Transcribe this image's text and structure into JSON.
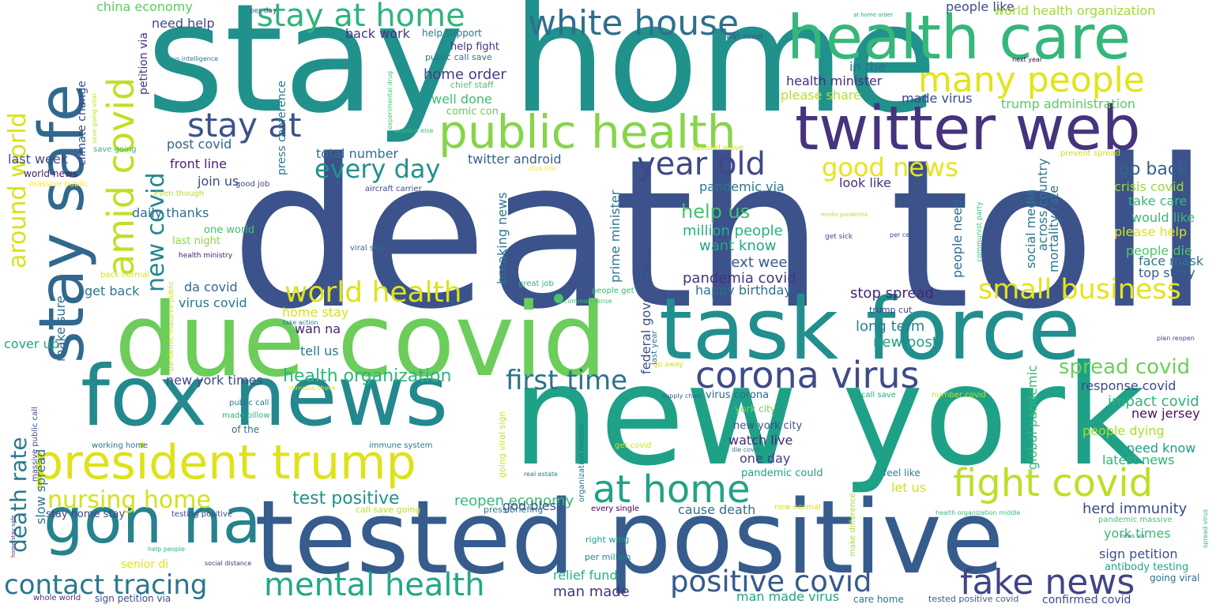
{
  "colors": {
    "background": "#ffffff",
    "palette": [
      "#440154",
      "#46327e",
      "#365c8d",
      "#277f8e",
      "#1fa187",
      "#4ac16d",
      "#a0da39",
      "#fde725"
    ]
  },
  "words": [
    {
      "text": "death toll",
      "color": "#3b528b"
    },
    {
      "text": "stay home",
      "color": "#21918c"
    },
    {
      "text": "new york",
      "color": "#1fa187"
    },
    {
      "text": "tested positive",
      "color": "#365c8d"
    },
    {
      "text": "due covid",
      "color": "#6ccd5a"
    },
    {
      "text": "task force",
      "color": "#218f8d"
    },
    {
      "text": "fox news",
      "color": "#23898e"
    },
    {
      "text": "health care",
      "color": "#35b779"
    },
    {
      "text": "twitter web",
      "color": "#46337e"
    },
    {
      "text": "gon na",
      "color": "#26828e"
    },
    {
      "text": "stay safe",
      "color": "#31688e"
    },
    {
      "text": "public health",
      "color": "#86d549"
    },
    {
      "text": "president trump",
      "color": "#dde318"
    },
    {
      "text": "white house",
      "color": "#2d708e"
    },
    {
      "text": "fight covid",
      "color": "#bddf26"
    },
    {
      "text": "corona virus",
      "color": "#3e4a89"
    },
    {
      "text": "stay at home",
      "color": "#2fb47c"
    },
    {
      "text": "at home",
      "color": "#20a386"
    },
    {
      "text": "fake news",
      "color": "#404588"
    },
    {
      "text": "positive covid",
      "color": "#375a8c"
    },
    {
      "text": "mental health",
      "color": "#22a884"
    },
    {
      "text": "contact tracing",
      "color": "#2a768e"
    },
    {
      "text": "many people",
      "color": "#e2e418"
    },
    {
      "text": "stay at",
      "color": "#3b528b"
    },
    {
      "text": "amid covid",
      "color": "#c2df23"
    },
    {
      "text": "year old",
      "color": "#3f4788"
    },
    {
      "text": "every day",
      "color": "#20928c"
    },
    {
      "text": "first time",
      "color": "#2c728e"
    },
    {
      "text": "world health",
      "color": "#dde318"
    },
    {
      "text": "small business",
      "color": "#e5e419"
    },
    {
      "text": "nursing home",
      "color": "#d2e21b"
    },
    {
      "text": "good news",
      "color": "#e7e419"
    },
    {
      "text": "spread covid",
      "color": "#6ece58"
    },
    {
      "text": "new covid",
      "color": "#24868e"
    },
    {
      "text": "around world",
      "color": "#d8e219"
    },
    {
      "text": "death rate",
      "color": "#2a788e"
    },
    {
      "text": "test positive",
      "color": "#21918c"
    },
    {
      "text": "health organization",
      "color": "#2fb47c"
    },
    {
      "text": "help us",
      "color": "#44bf70"
    },
    {
      "text": "go back",
      "color": "#33638d"
    },
    {
      "text": "million people",
      "color": "#29af7f"
    },
    {
      "text": "reopen economy",
      "color": "#37b878"
    },
    {
      "text": "herd immunity",
      "color": "#3e4989"
    },
    {
      "text": "stop spread",
      "color": "#482576"
    },
    {
      "text": "want know",
      "color": "#22a785"
    },
    {
      "text": "well done",
      "color": "#3dbc74"
    },
    {
      "text": "home order",
      "color": "#424086"
    },
    {
      "text": "next week",
      "color": "#38598c"
    },
    {
      "text": "pandemia covid",
      "color": "#46337f"
    },
    {
      "text": "long term",
      "color": "#26828e"
    },
    {
      "text": "new post",
      "color": "#1f9f88"
    },
    {
      "text": "response covid",
      "color": "#3e4989"
    },
    {
      "text": "impact covid",
      "color": "#2db27d"
    },
    {
      "text": "new jersey",
      "color": "#471063"
    },
    {
      "text": "people dying",
      "color": "#a8db34"
    },
    {
      "text": "need know",
      "color": "#1e9c89"
    },
    {
      "text": "latest news",
      "color": "#2eb37c"
    },
    {
      "text": "york times",
      "color": "#3aba76"
    },
    {
      "text": "sign petition",
      "color": "#3c4f8a"
    },
    {
      "text": "antibody testing",
      "color": "#20a386"
    },
    {
      "text": "going viral",
      "color": "#2e6e8e"
    },
    {
      "text": "man made",
      "color": "#46337e"
    },
    {
      "text": "man made virus",
      "color": "#20a486"
    },
    {
      "text": "relief fund",
      "color": "#2ab07f"
    },
    {
      "text": "per million",
      "color": "#25848e"
    },
    {
      "text": "right wing",
      "color": "#1fa088"
    },
    {
      "text": "watch live",
      "color": "#482878"
    },
    {
      "text": "one day",
      "color": "#433e85"
    },
    {
      "text": "pandemic could",
      "color": "#1f9e89"
    },
    {
      "text": "york city",
      "color": "#75d054"
    },
    {
      "text": "new york city",
      "color": "#3b528b"
    },
    {
      "text": "virus corona",
      "color": "#31688e"
    },
    {
      "text": "let us",
      "color": "#d0e11c"
    },
    {
      "text": "feel like",
      "color": "#25838e"
    },
    {
      "text": "cause death",
      "color": "#2e6e8e"
    },
    {
      "text": "god bless",
      "color": "#3b528b"
    },
    {
      "text": "happy birthday",
      "color": "#2c718e"
    },
    {
      "text": "look like",
      "color": "#46307e"
    },
    {
      "text": "pandemic via",
      "color": "#2a768e"
    },
    {
      "text": "total number",
      "color": "#2c738e"
    },
    {
      "text": "twitter android",
      "color": "#355f8d"
    },
    {
      "text": "post covid",
      "color": "#33638d"
    },
    {
      "text": "front line",
      "color": "#482173"
    },
    {
      "text": "join us",
      "color": "#3e4a89"
    },
    {
      "text": "daily thanks",
      "color": "#2e6f8e"
    },
    {
      "text": "one world",
      "color": "#45bf70"
    },
    {
      "text": "last night",
      "color": "#8ed645"
    },
    {
      "text": "da covid",
      "color": "#31688e"
    },
    {
      "text": "get back",
      "color": "#2a778e"
    },
    {
      "text": "virus covid",
      "color": "#2a778e"
    },
    {
      "text": "home stay",
      "color": "#d5e21a"
    },
    {
      "text": "wan na",
      "color": "#482475"
    },
    {
      "text": "tell us",
      "color": "#2a768e"
    },
    {
      "text": "cover up",
      "color": "#22a785"
    },
    {
      "text": "new york times",
      "color": "#3f4889"
    },
    {
      "text": "of the",
      "color": "#2e6e8e"
    },
    {
      "text": "china economy",
      "color": "#5ec962"
    },
    {
      "text": "need help",
      "color": "#3f4788"
    },
    {
      "text": "back work",
      "color": "#453581"
    },
    {
      "text": "help fight",
      "color": "#46337e"
    },
    {
      "text": "help support",
      "color": "#2a778e"
    },
    {
      "text": "public call save",
      "color": "#2a768e"
    },
    {
      "text": "comic con",
      "color": "#62cb5f"
    },
    {
      "text": "chief staff",
      "color": "#50c46a"
    },
    {
      "text": "people like",
      "color": "#3e4c8a"
    },
    {
      "text": "world health organization",
      "color": "#a2da37"
    },
    {
      "text": "in the",
      "color": "#2a768e"
    },
    {
      "text": "health minister",
      "color": "#472c7a"
    },
    {
      "text": "please share",
      "color": "#b8de29"
    },
    {
      "text": "made virus",
      "color": "#3f4788"
    },
    {
      "text": "trump administration",
      "color": "#5cc863"
    },
    {
      "text": "crisis covid",
      "color": "#9dd93b"
    },
    {
      "text": "take care",
      "color": "#3aba76"
    },
    {
      "text": "would like",
      "color": "#3aba76"
    },
    {
      "text": "please help",
      "color": "#dae319"
    },
    {
      "text": "people die",
      "color": "#54c568"
    },
    {
      "text": "face mask",
      "color": "#2a778e"
    },
    {
      "text": "top story",
      "color": "#355f8d"
    },
    {
      "text": "trump cut",
      "color": "#404588"
    },
    {
      "text": "last week",
      "color": "#3e4a89"
    },
    {
      "text": "world news",
      "color": "#481a6c"
    },
    {
      "text": "massive public",
      "color": "#fde725"
    },
    {
      "text": "even though",
      "color": "#b5de2b"
    },
    {
      "text": "good job",
      "color": "#3e4989"
    },
    {
      "text": "aircraft carrier",
      "color": "#3e4989"
    },
    {
      "text": "viral sign",
      "color": "#31688e"
    },
    {
      "text": "health ministry",
      "color": "#481769"
    },
    {
      "text": "back normal",
      "color": "#d2e21b"
    },
    {
      "text": "great job",
      "color": "#2db27d"
    },
    {
      "text": "people get",
      "color": "#37b878"
    },
    {
      "text": "common sense",
      "color": "#3dbc74"
    },
    {
      "text": "take action",
      "color": "#2a788e"
    },
    {
      "text": "go away",
      "color": "#cde11d"
    },
    {
      "text": "stimulus check",
      "color": "#dde318"
    },
    {
      "text": "supply chain",
      "color": "#33638d"
    },
    {
      "text": "call save",
      "color": "#25ab82"
    },
    {
      "text": "number covid",
      "color": "#c0df25"
    },
    {
      "text": "public call",
      "color": "#2a768e"
    },
    {
      "text": "made pillow",
      "color": "#2db27d"
    },
    {
      "text": "working home",
      "color": "#2c728e"
    },
    {
      "text": "immune system",
      "color": "#2a768e"
    },
    {
      "text": "stay home stay",
      "color": "#404588"
    },
    {
      "text": "testing positive",
      "color": "#3e4a89"
    },
    {
      "text": "senior di",
      "color": "#e3e418"
    },
    {
      "text": "social distance",
      "color": "#46307e"
    },
    {
      "text": "help people",
      "color": "#2db27d"
    },
    {
      "text": "call save going",
      "color": "#b8de29"
    },
    {
      "text": "press briefing",
      "color": "#2a768e"
    },
    {
      "text": "every single",
      "color": "#440154"
    },
    {
      "text": "real estate",
      "color": "#2a768e"
    },
    {
      "text": "get covid",
      "color": "#cde11d"
    },
    {
      "text": "die covid",
      "color": "#2a768e"
    },
    {
      "text": "new normal",
      "color": "#d8e219"
    },
    {
      "text": "health organization middle",
      "color": "#35b779"
    },
    {
      "text": "pandemic massive",
      "color": "#4ac16d"
    },
    {
      "text": "tested positive covid",
      "color": "#355f8d"
    },
    {
      "text": "care home",
      "color": "#2a768e"
    },
    {
      "text": "confirmed covid",
      "color": "#3e4a89"
    },
    {
      "text": "whole world",
      "color": "#46337e"
    },
    {
      "text": "sign petition via",
      "color": "#3e4989"
    },
    {
      "text": "per day",
      "color": "#3e4989"
    },
    {
      "text": "us intelligence",
      "color": "#2c728e"
    },
    {
      "text": "save going viral",
      "color": "#b8de29"
    },
    {
      "text": "save going",
      "color": "#37b878"
    },
    {
      "text": "wall street",
      "color": "#3b528b"
    },
    {
      "text": "at home order",
      "color": "#20a386"
    },
    {
      "text": "next year",
      "color": "#440154"
    },
    {
      "text": "second wave",
      "color": "#d2e21b"
    },
    {
      "text": "prevent spread",
      "color": "#cde11d"
    },
    {
      "text": "click link",
      "color": "#fde725"
    },
    {
      "text": "anyone else",
      "color": "#3dbc74"
    },
    {
      "text": "get sick",
      "color": "#3e4a89"
    },
    {
      "text": "per cent",
      "color": "#3e4989"
    },
    {
      "text": "medio pandemia",
      "color": "#b8de29"
    },
    {
      "text": "plan reopen",
      "color": "#3e4989"
    },
    {
      "text": "news via",
      "color": "#2a788e"
    },
    {
      "text": "slow spread",
      "color": "#2c728e"
    },
    {
      "text": "make sure",
      "color": "#2e6e8e"
    },
    {
      "text": "climate change",
      "color": "#3e4a89"
    },
    {
      "text": "petition via",
      "color": "#46307e"
    },
    {
      "text": "press conference",
      "color": "#2a788e"
    },
    {
      "text": "experimental drug",
      "color": "#4ac16d"
    },
    {
      "text": "prime minister",
      "color": "#2a778e"
    },
    {
      "text": "federal government",
      "color": "#3e4c8a"
    },
    {
      "text": "breaking news",
      "color": "#2a778e"
    },
    {
      "text": "last year",
      "color": "#2a768e"
    },
    {
      "text": "global pandemic",
      "color": "#35b779"
    },
    {
      "text": "going viral sign",
      "color": "#cde11d"
    },
    {
      "text": "organization middle",
      "color": "#2a768e"
    },
    {
      "text": "make difference",
      "color": "#a8db34"
    },
    {
      "text": "people need",
      "color": "#31688e"
    },
    {
      "text": "communist party",
      "color": "#3dbc74"
    },
    {
      "text": "social media",
      "color": "#2a768e"
    },
    {
      "text": "across country",
      "color": "#2a788e"
    },
    {
      "text": "mortality rate",
      "color": "#2a768e"
    },
    {
      "text": "spread virus",
      "color": "#2db27d"
    },
    {
      "text": "massive public call",
      "color": "#3e4989"
    },
    {
      "text": "pandemic massive public",
      "color": "#c2df23"
    },
    {
      "text": "home stay safe",
      "color": "#46337e"
    }
  ]
}
